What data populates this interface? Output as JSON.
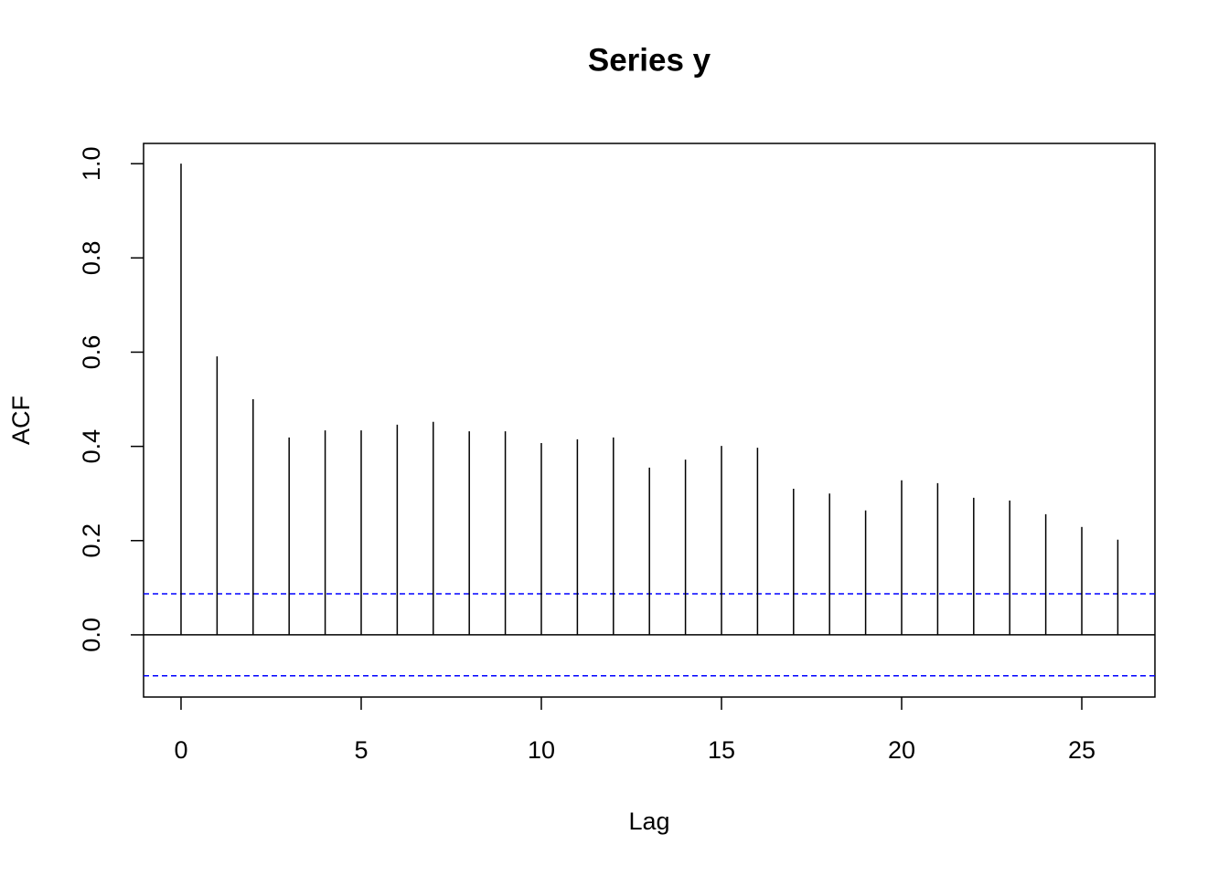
{
  "chart_data": {
    "type": "stem",
    "title": "Series  y",
    "x_label": "Lag",
    "y_label": "ACF",
    "x": [
      0,
      1,
      2,
      3,
      4,
      5,
      6,
      7,
      8,
      9,
      10,
      11,
      12,
      13,
      14,
      15,
      16,
      17,
      18,
      19,
      20,
      21,
      22,
      23,
      24,
      25,
      26
    ],
    "values": [
      1.0,
      0.591,
      0.5,
      0.419,
      0.434,
      0.434,
      0.446,
      0.452,
      0.432,
      0.432,
      0.407,
      0.415,
      0.419,
      0.355,
      0.372,
      0.401,
      0.397,
      0.31,
      0.3,
      0.264,
      0.328,
      0.322,
      0.291,
      0.285,
      0.256,
      0.229,
      0.202
    ],
    "color": "#000000",
    "ci": [
      0.087,
      -0.087
    ],
    "ci_color": "#0000ff",
    "xlim": [
      -1.04,
      27.03
    ],
    "ylim": [
      -0.132,
      1.043
    ],
    "xticks": [
      0,
      5,
      10,
      15,
      20,
      25
    ],
    "yticks": [
      {
        "value": 0,
        "label": "0.0"
      },
      0.2,
      0.4,
      0.6,
      0.8,
      {
        "value": 1,
        "label": "1.0"
      }
    ]
  }
}
